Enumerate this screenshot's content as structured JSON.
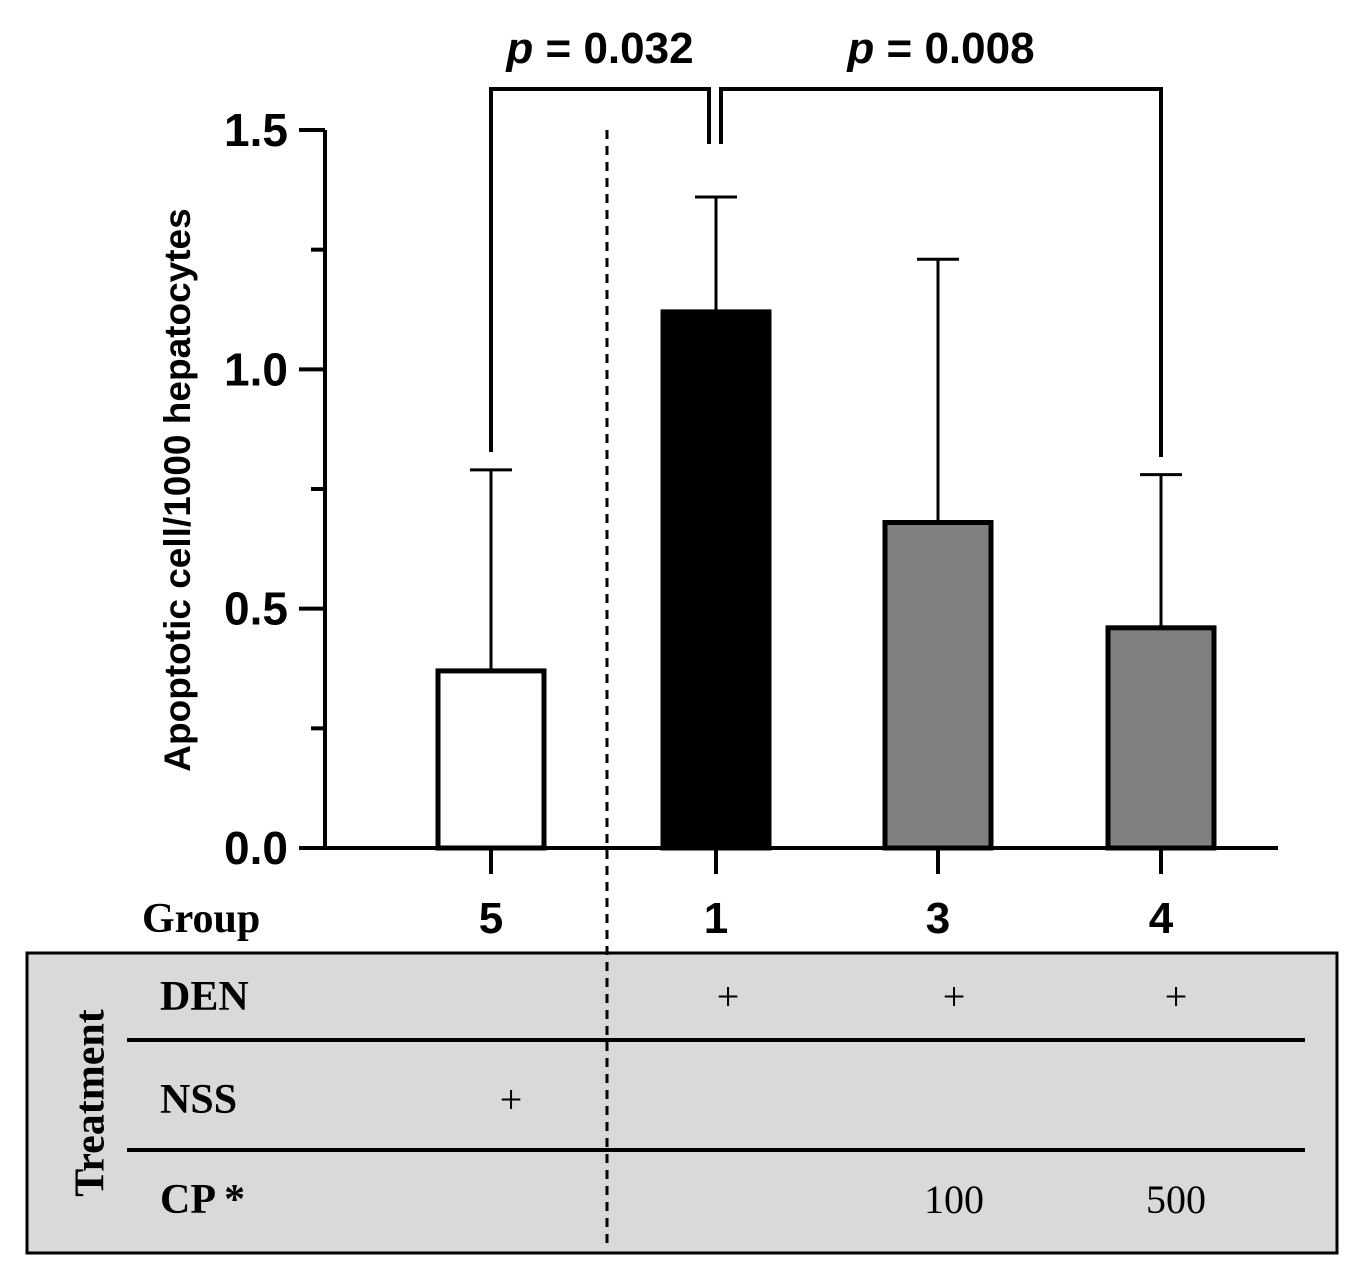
{
  "chart_data": {
    "type": "bar",
    "ylabel": "Apoptotic cell/1000 hepatocytes",
    "xlabel": "Group",
    "ylim": [
      0,
      1.5
    ],
    "yticks": [
      "0.0",
      "0.5",
      "1.0",
      "1.5"
    ],
    "categories": [
      "5",
      "1",
      "3",
      "4"
    ],
    "values": [
      0.37,
      1.12,
      0.68,
      0.46
    ],
    "errors": [
      0.42,
      0.24,
      0.55,
      0.32
    ],
    "bar_colors": [
      "#ffffff",
      "#000000",
      "#808080",
      "#808080"
    ],
    "comparisons": [
      {
        "groups": [
          "5",
          "1"
        ],
        "label_prefix": "p",
        "label_value": " = 0.032"
      },
      {
        "groups": [
          "1",
          "4"
        ],
        "label_prefix": "p",
        "label_value": " = 0.008"
      }
    ]
  },
  "table": {
    "title": "Treatment",
    "background": "#d9d9d9",
    "rows": [
      {
        "label": "DEN",
        "cells": [
          "",
          "+",
          "+",
          "+"
        ]
      },
      {
        "label": "NSS",
        "cells": [
          "+",
          "",
          "",
          ""
        ]
      },
      {
        "label": "CP *",
        "cells": [
          "",
          "",
          "100",
          "500"
        ]
      }
    ]
  }
}
